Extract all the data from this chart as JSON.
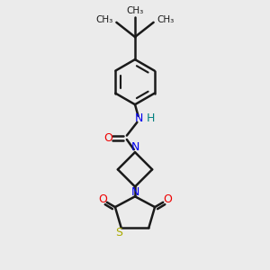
{
  "bg_color": "#ebebeb",
  "bond_color": "#1a1a1a",
  "N_color": "#0000ee",
  "O_color": "#ee0000",
  "S_color": "#aaaa00",
  "H_color": "#008080",
  "line_width": 1.8,
  "fig_size": [
    3.0,
    3.0
  ],
  "dpi": 100,
  "xlim": [
    0,
    10
  ],
  "ylim": [
    0,
    10
  ]
}
